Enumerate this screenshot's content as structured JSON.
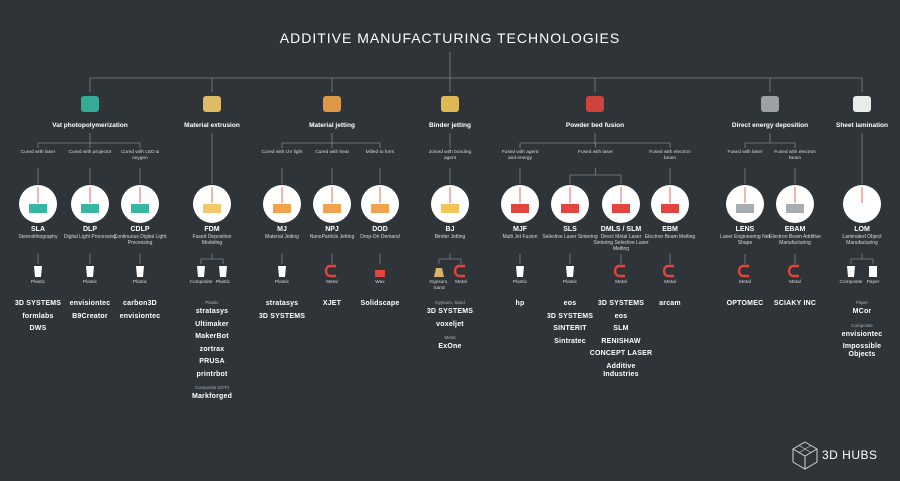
{
  "title": "ADDITIVE MANUFACTURING TECHNOLOGIES",
  "logo": "3D HUBS",
  "categories": [
    {
      "name": "Vat photopolymerization",
      "methods": [
        {
          "note": "Cured with laser",
          "processes": [
            {
              "abbr": "SLA",
              "name": "Stereolithography",
              "materials": [
                "Plastic"
              ],
              "brand_groups": [
                {
                  "brands": [
                    "3D SYSTEMS",
                    "formlabs",
                    "DWS"
                  ]
                }
              ]
            }
          ]
        },
        {
          "note": "Cured with projector",
          "processes": [
            {
              "abbr": "DLP",
              "name": "Digital Light Processing",
              "materials": [
                "Plastic"
              ],
              "brand_groups": [
                {
                  "brands": [
                    "envisiontec",
                    "B9Creator"
                  ]
                }
              ]
            }
          ]
        },
        {
          "note": "Cured with LED & oxygen",
          "processes": [
            {
              "abbr": "CDLP",
              "name": "Continuous Digital Light Processing",
              "materials": [
                "Plastic"
              ],
              "brand_groups": [
                {
                  "brands": [
                    "carbon3D",
                    "envisiontec"
                  ]
                }
              ]
            }
          ]
        }
      ]
    },
    {
      "name": "Material extrusion",
      "methods": [
        {
          "processes": [
            {
              "abbr": "FDM",
              "name": "Fused Deposition Modeling",
              "materials": [
                "Composite",
                "Plastic"
              ],
              "brand_groups": [
                {
                  "label": "Plastic",
                  "brands": [
                    "stratasys",
                    "Ultimaker",
                    "MakerBot",
                    "zortrax",
                    "PRUSA",
                    "printrbot"
                  ]
                },
                {
                  "label": "Composite (CFF)",
                  "brands": [
                    "Markforged"
                  ]
                }
              ]
            }
          ]
        }
      ]
    },
    {
      "name": "Material jetting",
      "methods": [
        {
          "note": "Cured with UV light",
          "processes": [
            {
              "abbr": "MJ",
              "name": "Material Jetting",
              "materials": [
                "Plastic"
              ],
              "brand_groups": [
                {
                  "brands": [
                    "stratasys",
                    "3D SYSTEMS"
                  ]
                }
              ]
            }
          ]
        },
        {
          "note": "Cured with heat",
          "processes": [
            {
              "abbr": "NPJ",
              "name": "NanoParticle Jetting",
              "materials": [
                "Metal"
              ],
              "brand_groups": [
                {
                  "brands": [
                    "XJET"
                  ]
                }
              ]
            }
          ]
        },
        {
          "note": "Milled to form",
          "processes": [
            {
              "abbr": "DOD",
              "name": "Drop-On Demand",
              "materials": [
                "Wax"
              ],
              "brand_groups": [
                {
                  "brands": [
                    "Solidscape"
                  ]
                }
              ]
            }
          ]
        }
      ]
    },
    {
      "name": "Binder jetting",
      "methods": [
        {
          "note": "Joined with bonding agent",
          "processes": [
            {
              "abbr": "BJ",
              "name": "Binder Jetting",
              "materials": [
                "Gypsum, Sand",
                "Metal"
              ],
              "brand_groups": [
                {
                  "label": "Gypsum, Sand",
                  "brands": [
                    "3D SYSTEMS",
                    "voxeljet"
                  ]
                },
                {
                  "label": "Metal",
                  "brands": [
                    "ExOne"
                  ]
                }
              ]
            }
          ]
        }
      ]
    },
    {
      "name": "Powder bed fusion",
      "methods": [
        {
          "note": "Fused with agent and energy",
          "processes": [
            {
              "abbr": "MJF",
              "name": "Multi Jet Fusion",
              "materials": [
                "Plastic"
              ],
              "brand_groups": [
                {
                  "brands": [
                    "hp"
                  ]
                }
              ]
            }
          ]
        },
        {
          "note": "Fused with laser",
          "processes": [
            {
              "abbr": "SLS",
              "name": "Selective Laser Sintering",
              "materials": [
                "Plastic"
              ],
              "brand_groups": [
                {
                  "brands": [
                    "eos",
                    "3D SYSTEMS",
                    "SINTERIT",
                    "Sintratec"
                  ]
                }
              ]
            },
            {
              "abbr": "DMLS / SLM",
              "name": "Direct Metal Laser Sintering Selective Laser Melting",
              "materials": [
                "Metal"
              ],
              "brand_groups": [
                {
                  "brands": [
                    "3D SYSTEMS",
                    "eos",
                    "SLM",
                    "RENISHAW",
                    "CONCEPT LASER",
                    "Additive Industries"
                  ]
                }
              ]
            }
          ]
        },
        {
          "note": "Fused with electron beam",
          "processes": [
            {
              "abbr": "EBM",
              "name": "Electron Beam Melting",
              "materials": [
                "Metal"
              ],
              "brand_groups": [
                {
                  "brands": [
                    "arcam"
                  ]
                }
              ]
            }
          ]
        }
      ]
    },
    {
      "name": "Direct energy deposition",
      "methods": [
        {
          "note": "Fused with laser",
          "processes": [
            {
              "abbr": "LENS",
              "name": "Laser Engineering Net Shape",
              "materials": [
                "Metal"
              ],
              "brand_groups": [
                {
                  "brands": [
                    "OPTOMEC"
                  ]
                }
              ]
            }
          ]
        },
        {
          "note": "Fused with electron beam",
          "processes": [
            {
              "abbr": "EBAM",
              "name": "Electron Beam Additive Manufacturing",
              "materials": [
                "Metal"
              ],
              "brand_groups": [
                {
                  "brands": [
                    "SCIAKY INC"
                  ]
                }
              ]
            }
          ]
        }
      ]
    },
    {
      "name": "Sheet lamination",
      "methods": [
        {
          "processes": [
            {
              "abbr": "LOM",
              "name": "Laminated Object Manufacturing",
              "materials": [
                "Composite",
                "Paper"
              ],
              "brand_groups": [
                {
                  "label": "Paper",
                  "brands": [
                    "MCor"
                  ]
                },
                {
                  "label": "Composite",
                  "brands": [
                    "envisiontec",
                    "Impossible Objects"
                  ]
                }
              ]
            }
          ]
        }
      ]
    }
  ]
}
